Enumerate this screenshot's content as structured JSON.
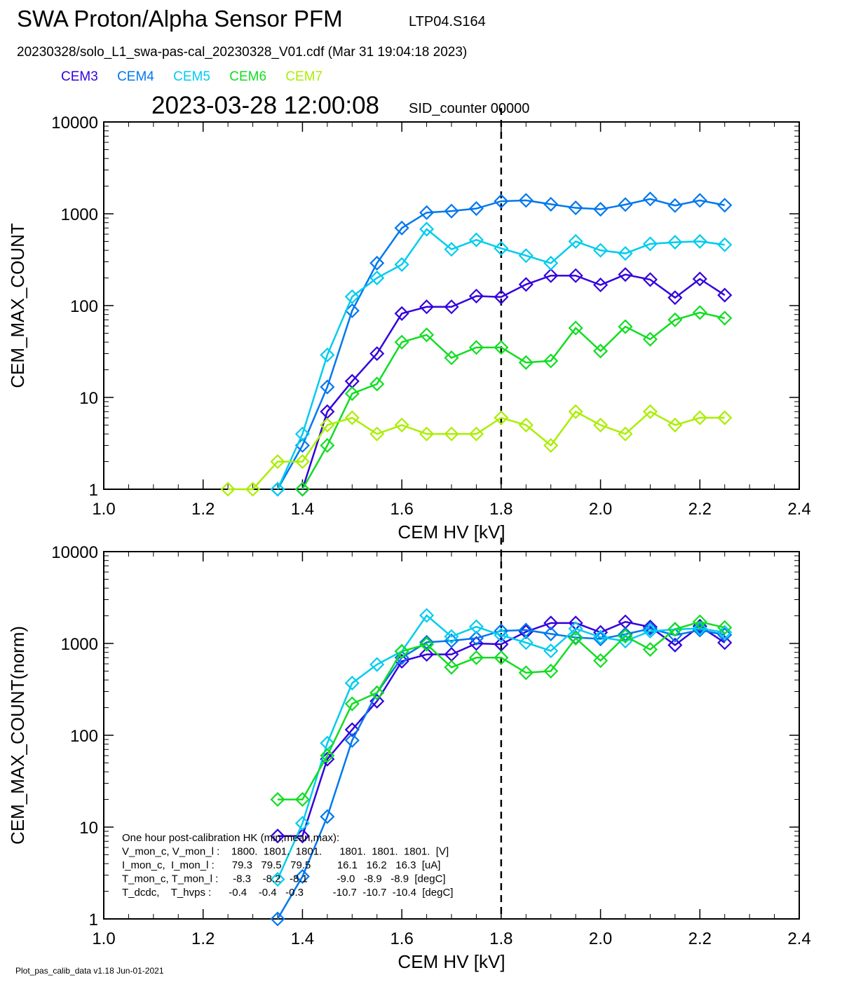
{
  "header": {
    "title": "SWA Proton/Alpha Sensor PFM",
    "subtitle": "LTP04.S164",
    "file_line": "20230328/solo_L1_swa-pas-cal_20230328_V01.cdf  (Mar 31 19:04:18 2023)",
    "timestamp": "2023-03-28 12:00:08",
    "sid": "SID_counter 00000"
  },
  "legend": [
    {
      "label": "CEM3",
      "color": "#3300dd"
    },
    {
      "label": "CEM4",
      "color": "#0077ee"
    },
    {
      "label": "CEM5",
      "color": "#00ccee"
    },
    {
      "label": "CEM6",
      "color": "#11dd22"
    },
    {
      "label": "CEM7",
      "color": "#aaee00"
    }
  ],
  "annotation": {
    "lines": [
      "One hour post-calibration HK (min,mean,max):",
      "V_mon_c, V_mon_l :    1800.  1801.  1801.      1801.  1801.  1801.  [V]",
      "I_mon_c,  I_mon_l :      79.3   79.5   79.5         16.1   16.2   16.3  [uA]",
      "T_mon_c, T_mon_l :     -8.3    -8.2   -8.1          -9.0   -8.9   -8.9  [degC]",
      "T_dcdc,    T_hvps :      -0.4    -0.4   -0.3          -10.7  -10.7  -10.4  [degC]"
    ]
  },
  "footer": "Plot_pas_calib_data v1.18 Jun-01-2021",
  "chart_data": [
    {
      "type": "line",
      "ylabel": "CEM_MAX_COUNT",
      "xlabel": "CEM HV [kV]",
      "xlim": [
        1.0,
        2.4
      ],
      "ylim": [
        1,
        10000
      ],
      "yscale": "log",
      "x_ticks": [
        "1.0",
        "1.2",
        "1.4",
        "1.6",
        "1.8",
        "2.0",
        "2.2",
        "2.4"
      ],
      "y_ticks": [
        "1",
        "10",
        "100",
        "1000",
        "10000"
      ],
      "vline": 1.8,
      "series": [
        {
          "name": "CEM3",
          "color": "#3300dd",
          "x": [
            1.4,
            1.45,
            1.5,
            1.55,
            1.6,
            1.65,
            1.7,
            1.75,
            1.8,
            1.85,
            1.9,
            1.95,
            2.0,
            2.05,
            2.1,
            2.15,
            2.2,
            2.25
          ],
          "y": [
            1,
            7,
            15,
            30,
            82,
            97,
            97,
            127,
            124,
            170,
            212,
            212,
            168,
            218,
            192,
            122,
            195,
            130
          ]
        },
        {
          "name": "CEM4",
          "color": "#0077ee",
          "x": [
            1.35,
            1.4,
            1.45,
            1.5,
            1.55,
            1.6,
            1.65,
            1.7,
            1.75,
            1.8,
            1.85,
            1.9,
            1.95,
            2.0,
            2.05,
            2.1,
            2.15,
            2.2,
            2.25
          ],
          "y": [
            1,
            3,
            13,
            88,
            290,
            700,
            1030,
            1070,
            1140,
            1370,
            1400,
            1270,
            1160,
            1120,
            1260,
            1450,
            1230,
            1400,
            1240
          ]
        },
        {
          "name": "CEM5",
          "color": "#00ccee",
          "x": [
            1.35,
            1.4,
            1.45,
            1.5,
            1.55,
            1.6,
            1.65,
            1.7,
            1.75,
            1.8,
            1.85,
            1.9,
            1.95,
            2.0,
            2.05,
            2.1,
            2.15,
            2.2,
            2.25
          ],
          "y": [
            1,
            4,
            29,
            125,
            200,
            280,
            680,
            410,
            520,
            420,
            350,
            290,
            500,
            400,
            370,
            470,
            490,
            500,
            460
          ]
        },
        {
          "name": "CEM6",
          "color": "#11dd22",
          "x": [
            1.4,
            1.45,
            1.5,
            1.55,
            1.6,
            1.65,
            1.7,
            1.75,
            1.8,
            1.85,
            1.9,
            1.95,
            2.0,
            2.05,
            2.1,
            2.15,
            2.2,
            2.25
          ],
          "y": [
            1,
            3,
            11,
            14,
            40,
            48,
            27,
            35,
            35,
            24,
            25,
            57,
            32,
            59,
            43,
            70,
            84,
            73
          ]
        },
        {
          "name": "CEM7",
          "color": "#aaee00",
          "x": [
            1.25,
            1.3,
            1.35,
            1.4,
            1.45,
            1.5,
            1.55,
            1.6,
            1.65,
            1.7,
            1.75,
            1.8,
            1.85,
            1.9,
            1.95,
            2.0,
            2.05,
            2.1,
            2.15,
            2.2,
            2.25
          ],
          "y": [
            1,
            1,
            2,
            2,
            5,
            6,
            4,
            5,
            4,
            4,
            4,
            6,
            5,
            3,
            7,
            5,
            4,
            7,
            5,
            6,
            6
          ]
        }
      ]
    },
    {
      "type": "line",
      "ylabel": "CEM_MAX_COUNT(norm)",
      "xlabel": "CEM HV [kV]",
      "xlim": [
        1.0,
        2.4
      ],
      "ylim": [
        1,
        10000
      ],
      "yscale": "log",
      "x_ticks": [
        "1.0",
        "1.2",
        "1.4",
        "1.6",
        "1.8",
        "2.0",
        "2.2",
        "2.4"
      ],
      "y_ticks": [
        "1",
        "10",
        "100",
        "1000",
        "10000"
      ],
      "vline": 1.8,
      "series": [
        {
          "name": "CEM3",
          "color": "#3300dd",
          "x": [
            1.35,
            1.4,
            1.45,
            1.5,
            1.55,
            1.6,
            1.65,
            1.7,
            1.75,
            1.8,
            1.85,
            1.9,
            1.95,
            2.0,
            2.05,
            2.1,
            2.15,
            2.2,
            2.25
          ],
          "y": [
            8,
            8,
            55,
            115,
            235,
            640,
            760,
            760,
            1000,
            980,
            1340,
            1670,
            1670,
            1320,
            1720,
            1510,
            960,
            1540,
            1020
          ]
        },
        {
          "name": "CEM4",
          "color": "#0077ee",
          "x": [
            1.35,
            1.4,
            1.45,
            1.5,
            1.55,
            1.6,
            1.65,
            1.7,
            1.75,
            1.8,
            1.85,
            1.9,
            1.95,
            2.0,
            2.05,
            2.1,
            2.15,
            2.2,
            2.25
          ],
          "y": [
            1,
            2.9,
            13,
            88,
            290,
            700,
            1030,
            1070,
            1140,
            1370,
            1400,
            1270,
            1160,
            1120,
            1260,
            1450,
            1230,
            1400,
            1240
          ]
        },
        {
          "name": "CEM5",
          "color": "#00ccee",
          "x": [
            1.35,
            1.4,
            1.45,
            1.5,
            1.55,
            1.6,
            1.65,
            1.7,
            1.75,
            1.8,
            1.85,
            1.9,
            1.95,
            2.0,
            2.05,
            2.1,
            2.15,
            2.2,
            2.25
          ],
          "y": [
            2.7,
            11,
            82,
            370,
            590,
            820,
            2020,
            1190,
            1520,
            1230,
            1020,
            830,
            1450,
            1170,
            1060,
            1360,
            1420,
            1460,
            1320
          ]
        },
        {
          "name": "CEM6",
          "color": "#11dd22",
          "x": [
            1.35,
            1.4,
            1.45,
            1.5,
            1.55,
            1.6,
            1.65,
            1.7,
            1.75,
            1.8,
            1.85,
            1.9,
            1.95,
            2.0,
            2.05,
            2.1,
            2.15,
            2.2,
            2.25
          ],
          "y": [
            20,
            20,
            60,
            220,
            290,
            820,
            980,
            550,
            700,
            700,
            480,
            500,
            1140,
            650,
            1200,
            860,
            1430,
            1720,
            1490
          ]
        }
      ]
    }
  ]
}
